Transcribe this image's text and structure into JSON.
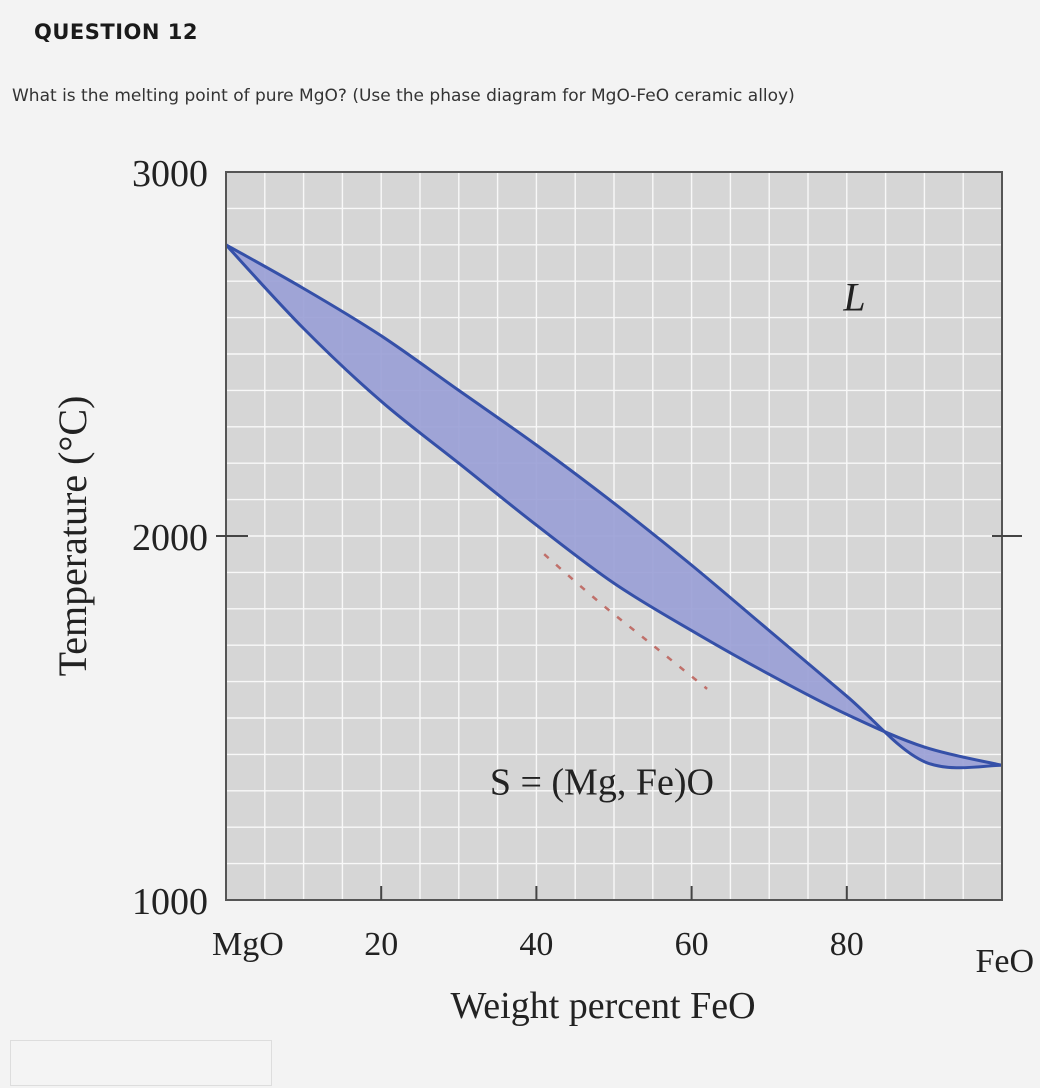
{
  "question": {
    "title": "QUESTION 12",
    "text": "What is the melting point of pure MgO? (Use the phase diagram for MgO-FeO ceramic alloy)"
  },
  "colors": {
    "region_fill": "#9a9fd6",
    "boundary_line": "#3550a8",
    "dashed_line": "#c0706a",
    "grid": "#ffffff",
    "plot_background": "#d6d6d6"
  },
  "chart_data": {
    "type": "area",
    "xlabel": "Weight percent FeO",
    "ylabel": "Temperature (°C)",
    "xlim": [
      0,
      100
    ],
    "ylim": [
      1000,
      3000
    ],
    "x_end_labels": {
      "left": "MgO",
      "right": "FeO"
    },
    "x_ticks": [
      {
        "value": 20,
        "label": "20"
      },
      {
        "value": 40,
        "label": "40"
      },
      {
        "value": 60,
        "label": "60"
      },
      {
        "value": 80,
        "label": "80"
      }
    ],
    "y_ticks": [
      {
        "value": 1000,
        "label": "1000"
      },
      {
        "value": 2000,
        "label": "2000"
      },
      {
        "value": 3000,
        "label": "3000"
      }
    ],
    "grid": true,
    "series": [
      {
        "x": [
          0,
          10,
          20,
          30,
          40,
          50,
          60,
          70,
          80,
          90,
          100
        ],
        "y": [
          2800,
          2680,
          2550,
          2400,
          2250,
          2090,
          1920,
          1740,
          1560,
          1380,
          1370
        ]
      },
      {
        "x": [
          0,
          10,
          20,
          30,
          40,
          50,
          60,
          70,
          80,
          90,
          100
        ],
        "y": [
          2800,
          2570,
          2370,
          2200,
          2030,
          1870,
          1740,
          1620,
          1510,
          1420,
          1370
        ]
      },
      {
        "x": [
          41,
          48,
          55,
          62
        ],
        "y": [
          1950,
          1820,
          1700,
          1580
        ]
      }
    ],
    "annotations": [
      {
        "text": "L",
        "x": 81,
        "y": 2620
      },
      {
        "text": "S = (Mg, Fe)O",
        "x": 34,
        "y": 1290
      }
    ]
  }
}
